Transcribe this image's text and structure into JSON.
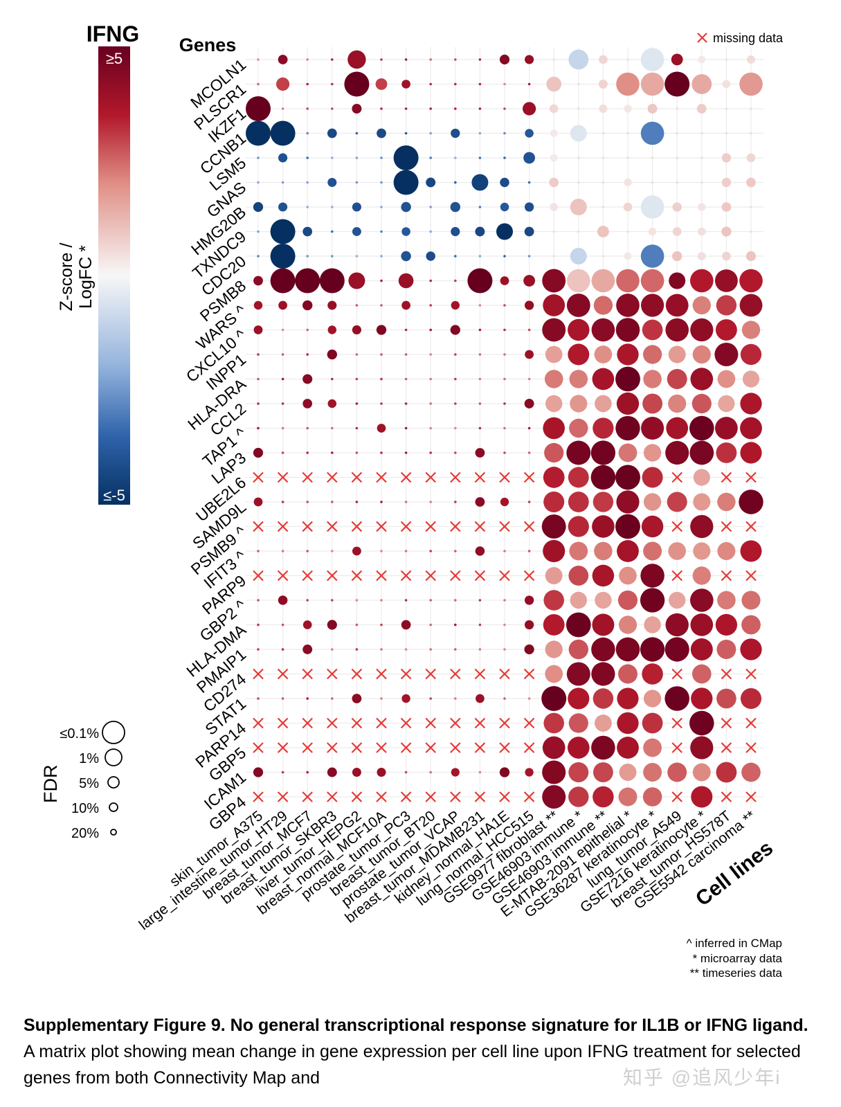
{
  "chart_data": {
    "type": "dot-matrix",
    "title": "IFNG",
    "ylabel": "Genes",
    "xlabel": "Cell lines",
    "colorbar": {
      "label_line1": "Z-score /",
      "label_line2": "LogFC *",
      "max_label": "≥5",
      "min_label": "≤-5",
      "range": [
        -5,
        5
      ],
      "colors": {
        "high": "#67001f",
        "mid": "#f7f7f7",
        "low": "#053061"
      }
    },
    "size_legend": {
      "title": "FDR",
      "items": [
        "≤0.1%",
        "1%",
        "5%",
        "10%",
        "20%"
      ]
    },
    "missing_legend": "missing data",
    "notes": [
      "^ inferred in CMap",
      "* microarray data",
      "** timeseries data"
    ],
    "genes": [
      "MCOLN1",
      "PLSCR1",
      "IKZF1",
      "CCNB1",
      "LSM5",
      "GNAS",
      "HMG20B",
      "TXNDC9",
      "CDC20",
      "PSMB8",
      "WARS ^",
      "CXCL10 ^",
      "INPP1",
      "HLA-DRA",
      "CCL2",
      "TAP1 ^",
      "LAP3",
      "UBE2L6",
      "SAMD9L",
      "PSMB9 ^",
      "IFIT3 ^",
      "PARP9",
      "GBP2 ^",
      "HLA-DMA",
      "PMAIP1",
      "CD274",
      "STAT1",
      "PARP14",
      "GBP5",
      "ICAM1",
      "GBP4"
    ],
    "cell_lines": [
      "skin_tumor_A375",
      "large_intestine_tumor_HT29",
      "breast_tumor_MCF7",
      "breast_tumor_SKBR3",
      "liver_tumor_HEPG2",
      "breast_normal_MCF10A",
      "prostate_tumor_PC3",
      "breast_tumor_BT20",
      "prostate_tumor_VCAP",
      "breast_tumor_MDAMB231",
      "kidney_normal_HA1E",
      "lung_normal_HCC515",
      "GSE9977 fibroblast **",
      "GSE46903 immune *",
      "GSE46903 immune **",
      "E-MTAB-2091 epithelial *",
      "GSE36287 keratinocyte *",
      "lung_tumor_A549",
      "GSE7216 keratinocyte *",
      "breast_tumor_HS578T",
      "GSE5542 carcinoma **"
    ],
    "cell_missing_for_cmap_only_genes": [
      0,
      1,
      2,
      3,
      4,
      5,
      6,
      7,
      8,
      9,
      10,
      11,
      17,
      19,
      20
    ],
    "cmap_only_missing_genes": [
      "UBE2L6",
      "PSMB9 ^",
      "PARP9",
      "CD274",
      "PARP14",
      "GBP5",
      "GBP4"
    ],
    "strong_cells": [
      {
        "gene": "MCOLN1",
        "cell": 4,
        "z": 4,
        "size": 0.55
      },
      {
        "gene": "MCOLN1",
        "cell": 13,
        "z": -1,
        "size": 0.6
      },
      {
        "gene": "MCOLN1",
        "cell": 16,
        "z": -0.5,
        "size": 0.7
      },
      {
        "gene": "MCOLN1",
        "cell": 17,
        "z": 4,
        "size": 0.35
      },
      {
        "gene": "PLSCR1",
        "cell": 1,
        "z": 3,
        "size": 0.4
      },
      {
        "gene": "PLSCR1",
        "cell": 4,
        "z": 5,
        "size": 0.75
      },
      {
        "gene": "PLSCR1",
        "cell": 5,
        "z": 3,
        "size": 0.35
      },
      {
        "gene": "PLSCR1",
        "cell": 16,
        "z": 1.5,
        "size": 0.7
      },
      {
        "gene": "PLSCR1",
        "cell": 15,
        "z": 2,
        "size": 0.7
      },
      {
        "gene": "PLSCR1",
        "cell": 17,
        "z": 5,
        "size": 0.75
      },
      {
        "gene": "PLSCR1",
        "cell": 18,
        "z": 1.5,
        "size": 0.6
      },
      {
        "gene": "PLSCR1",
        "cell": 20,
        "z": 1.8,
        "size": 0.7
      },
      {
        "gene": "PLSCR1",
        "cell": 12,
        "z": 1,
        "size": 0.45
      },
      {
        "gene": "IKZF1",
        "cell": 0,
        "z": 5,
        "size": 0.75
      },
      {
        "gene": "IKZF1",
        "cell": 11,
        "z": 4,
        "size": 0.4
      },
      {
        "gene": "CCNB1",
        "cell": 0,
        "z": -5,
        "size": 0.75
      },
      {
        "gene": "CCNB1",
        "cell": 1,
        "z": -5,
        "size": 0.75
      },
      {
        "gene": "CCNB1",
        "cell": 16,
        "z": -3,
        "size": 0.7
      },
      {
        "gene": "CCNB1",
        "cell": 13,
        "z": -0.5,
        "size": 0.5
      },
      {
        "gene": "LSM5",
        "cell": 6,
        "z": -5,
        "size": 0.75
      },
      {
        "gene": "LSM5",
        "cell": 11,
        "z": -4,
        "size": 0.35
      },
      {
        "gene": "GNAS",
        "cell": 6,
        "z": -5,
        "size": 0.75
      },
      {
        "gene": "GNAS",
        "cell": 9,
        "z": -4.5,
        "size": 0.5
      },
      {
        "gene": "HMG20B",
        "cell": 6,
        "z": -4,
        "size": 0.3
      },
      {
        "gene": "HMG20B",
        "cell": 8,
        "z": -4,
        "size": 0.3
      },
      {
        "gene": "HMG20B",
        "cell": 13,
        "z": 1,
        "size": 0.5
      },
      {
        "gene": "HMG20B",
        "cell": 16,
        "z": -0.5,
        "size": 0.7
      },
      {
        "gene": "TXNDC9",
        "cell": 1,
        "z": -5,
        "size": 0.75
      },
      {
        "gene": "TXNDC9",
        "cell": 10,
        "z": -5,
        "size": 0.5
      },
      {
        "gene": "TXNDC9",
        "cell": 14,
        "z": 1,
        "size": 0.35
      },
      {
        "gene": "CDC20",
        "cell": 1,
        "z": -5,
        "size": 0.75
      },
      {
        "gene": "CDC20",
        "cell": 6,
        "z": -4,
        "size": 0.3
      },
      {
        "gene": "CDC20",
        "cell": 13,
        "z": -1,
        "size": 0.5
      },
      {
        "gene": "CDC20",
        "cell": 16,
        "z": -3,
        "size": 0.7
      },
      {
        "gene": "PSMB8",
        "cell": 1,
        "z": 5,
        "size": 0.75
      },
      {
        "gene": "PSMB8",
        "cell": 2,
        "z": 5,
        "size": 0.75
      },
      {
        "gene": "PSMB8",
        "cell": 3,
        "z": 5,
        "size": 0.75
      },
      {
        "gene": "PSMB8",
        "cell": 4,
        "z": 4,
        "size": 0.5
      },
      {
        "gene": "PSMB8",
        "cell": 6,
        "z": 4,
        "size": 0.45
      },
      {
        "gene": "PSMB8",
        "cell": 9,
        "z": 5,
        "size": 0.75
      },
      {
        "gene": "PSMB8",
        "cell": 11,
        "z": 4,
        "size": 0.35
      },
      {
        "gene": "PSMB8",
        "cell": 13,
        "z": 1,
        "size": 0.7
      },
      {
        "gene": "PSMB8",
        "cell": 14,
        "z": 1.5,
        "size": 0.7
      },
      {
        "gene": "PSMB8",
        "cell": 15,
        "z": 2.5,
        "size": 0.7
      },
      {
        "gene": "PSMB8",
        "cell": 16,
        "z": 2.5,
        "size": 0.7
      },
      {
        "gene": "PSMB8",
        "cell": 17,
        "z": 4.5,
        "size": 0.5
      },
      {
        "gene": "PSMB8",
        "cell": 18,
        "z": 3.5,
        "size": 0.7
      },
      {
        "gene": "PSMB8",
        "cell": 20,
        "z": 3.5,
        "size": 0.7
      }
    ]
  },
  "caption": {
    "bold_text": "Supplementary Figure 9. No general transcriptional response signature for IL1B or IFNG ligand.",
    "text": " A matrix plot showing mean change in gene expression per cell line upon IFNG treatment for selected genes from both Connectivity Map and"
  },
  "watermark": "知乎 @追风少年i"
}
